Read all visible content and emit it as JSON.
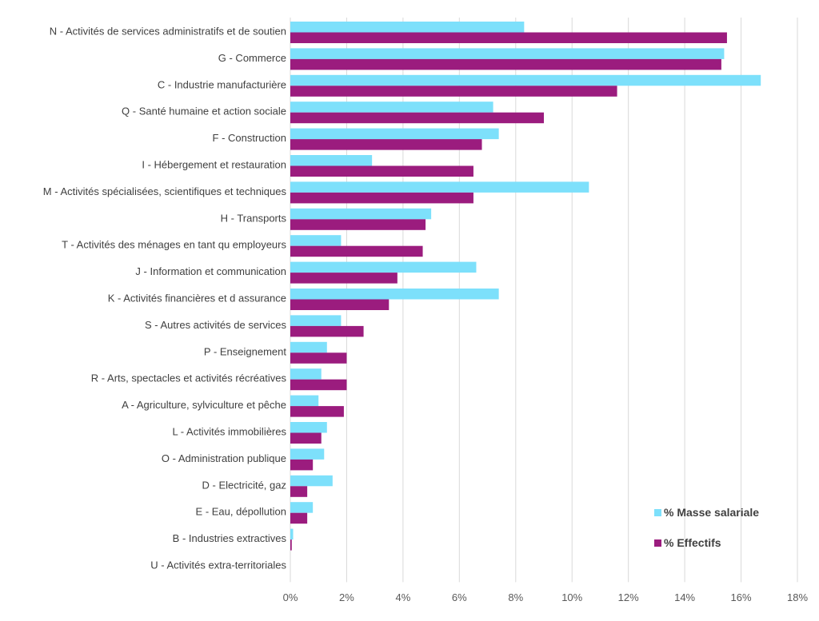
{
  "chart_data": {
    "type": "bar",
    "orientation": "horizontal",
    "categories": [
      "N - Activités de services administratifs et de soutien",
      "G - Commerce",
      "C - Industrie manufacturière",
      "Q - Santé humaine et action sociale",
      "F - Construction",
      "I - Hébergement et restauration",
      "M - Activités spécialisées, scientifiques et techniques",
      "H - Transports",
      "T - Activités des ménages en tant qu employeurs",
      "J - Information et communication",
      "K - Activités financières et d assurance",
      "S - Autres activités de services",
      "P - Enseignement",
      "R - Arts, spectacles et activités récréatives",
      "A - Agriculture, sylviculture et pêche",
      "L - Activités immobilières",
      "O - Administration publique",
      "D - Electricité, gaz",
      "E - Eau, dépollution",
      "B - Industries extractives",
      "U - Activités extra-territoriales"
    ],
    "series": [
      {
        "name": "% Masse salariale",
        "color": "#7de0fb",
        "values": [
          8.3,
          15.4,
          16.7,
          7.2,
          7.4,
          2.9,
          10.6,
          5.0,
          1.8,
          6.6,
          7.4,
          1.8,
          1.3,
          1.1,
          1.0,
          1.3,
          1.2,
          1.5,
          0.8,
          0.1,
          0.0
        ]
      },
      {
        "name": "% Effectifs",
        "color": "#9b1c7e",
        "values": [
          15.5,
          15.3,
          11.6,
          9.0,
          6.8,
          6.5,
          6.5,
          4.8,
          4.7,
          3.8,
          3.5,
          2.6,
          2.0,
          2.0,
          1.9,
          1.1,
          0.8,
          0.6,
          0.6,
          0.05,
          0.0
        ]
      }
    ],
    "xlim": [
      0,
      18
    ],
    "ticks": [
      "0%",
      "2%",
      "4%",
      "6%",
      "8%",
      "10%",
      "12%",
      "14%",
      "16%",
      "18%"
    ],
    "tick_values": [
      0,
      2,
      4,
      6,
      8,
      10,
      12,
      14,
      16,
      18
    ],
    "grid": true,
    "legend_position": "bottom-right"
  }
}
